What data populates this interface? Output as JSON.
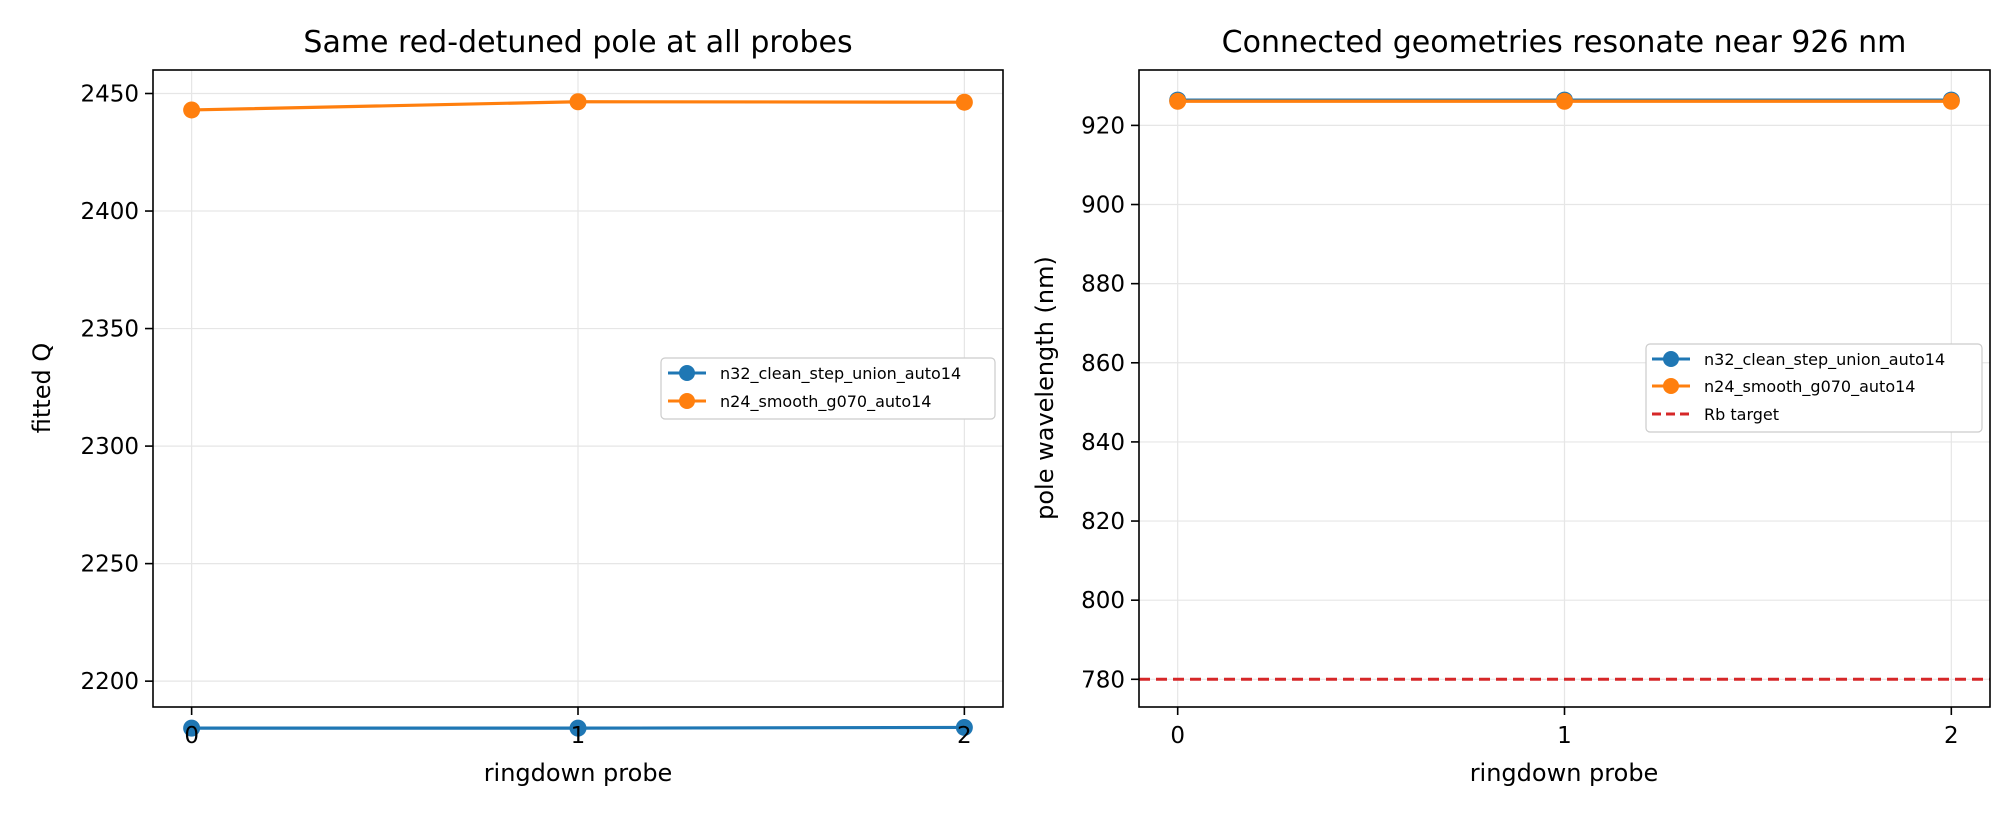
{
  "chart_data": [
    {
      "type": "line",
      "title": "Same red-detuned pole at all probes",
      "xlabel": "ringdown probe",
      "ylabel": "fitted Q",
      "x": [
        0,
        1,
        2
      ],
      "xticks": [
        "0",
        "1",
        "2"
      ],
      "xlim": [
        -0.1,
        2.1
      ],
      "ylim": [
        2189,
        2460
      ],
      "yticks": [
        2200,
        2250,
        2300,
        2350,
        2400,
        2450
      ],
      "grid": true,
      "legend_position": "center-right",
      "series": [
        {
          "name": "n32_clean_step_union_auto14",
          "color": "#1f77b4",
          "values": [
            2180,
            2180,
            2180.3
          ]
        },
        {
          "name": "n24_smooth_g070_auto14",
          "color": "#ff7f0e",
          "values": [
            2443,
            2446.5,
            2446.3
          ]
        }
      ]
    },
    {
      "type": "line",
      "title": "Connected geometries resonate near 926 nm",
      "xlabel": "ringdown probe",
      "ylabel": "pole wavelength (nm)",
      "x": [
        0,
        1,
        2
      ],
      "xticks": [
        "0",
        "1",
        "2"
      ],
      "xlim": [
        -0.1,
        2.1
      ],
      "ylim": [
        773,
        934
      ],
      "yticks": [
        780,
        800,
        820,
        840,
        860,
        880,
        900,
        920
      ],
      "grid": true,
      "legend_position": "center-right",
      "series": [
        {
          "name": "n32_clean_step_union_auto14",
          "color": "#1f77b4",
          "values": [
            926.4,
            926.4,
            926.4
          ]
        },
        {
          "name": "n24_smooth_g070_auto14",
          "color": "#ff7f0e",
          "values": [
            926.1,
            926.1,
            926.1
          ]
        }
      ],
      "reference_lines": [
        {
          "name": "Rb target",
          "color": "#d62728",
          "style": "dashed",
          "y": 780
        }
      ]
    }
  ]
}
